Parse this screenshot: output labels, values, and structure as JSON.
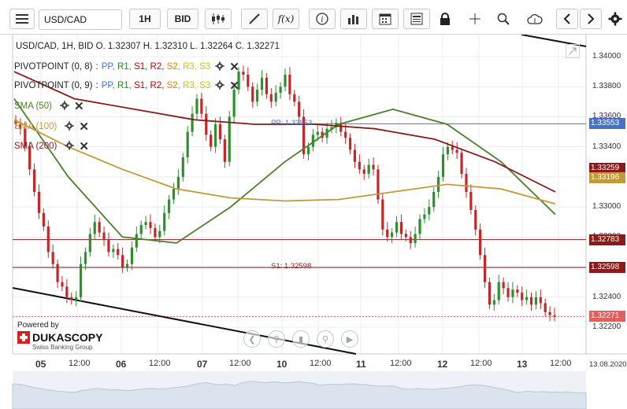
{
  "toolbar": {
    "instrument": "USD/CAD",
    "timeframe": "1H",
    "side": "BID",
    "icons": [
      "menu-icon",
      "candles-icon",
      "draw-pen-icon",
      "fx-icon",
      "info-icon",
      "bar-volume-icon",
      "calendar-icon",
      "news-icon",
      "lock-icon",
      "crosshair-icon",
      "zoom-icon",
      "cloud-upload-icon",
      "arrow-left-icon",
      "arrow-right-icon",
      "settings-gear-icon"
    ],
    "fx_label": "f(x)"
  },
  "header": {
    "ohlc": "USD/CAD, 1H, BID   O. 1.32307 H. 1.32310 L. 1.32264 C. 1.32271"
  },
  "legend": {
    "pivot1": {
      "label": "PIVOTPOINT (0, 8)",
      "sep": ":",
      "items": [
        "PP,",
        "R1,",
        "S1,",
        "R2,",
        "S2,",
        "R3,",
        "S3"
      ]
    },
    "pivot2": {
      "label": "PIVOTPOINT (0, 9)",
      "sep": ":",
      "items": [
        "PP,",
        "R1,",
        "S1,",
        "R2,",
        "S2,",
        "R3,",
        "S3"
      ]
    },
    "sma50": {
      "label": "SMA (50)"
    },
    "sma100": {
      "label": "SMA (100)"
    },
    "sma200": {
      "label": "SMA (200)"
    }
  },
  "annotations": {
    "pp_line": "PP: 1.33553",
    "s1_line": "S1: 1.32598"
  },
  "branding": {
    "powered_by": "Powered by",
    "name": "DUKASCOPY",
    "sub": "Swiss Banking Group"
  },
  "colors": {
    "pp_blue": "#4472c4",
    "r1_green": "#2a8a2a",
    "s1_red": "#c00000",
    "r2_red": "#c00000",
    "s2_orange": "#e08000",
    "r3_yellow": "#d8c000",
    "s3_yellow": "#d8c000",
    "sma50": "#4a7f2a",
    "sma100": "#c39a3a",
    "sma200": "#8b1a1a",
    "bull": "#2f8f2f",
    "bear": "#c0282a",
    "resistance": "#8b1a1a",
    "current": "#e06060"
  },
  "chart_data": {
    "type": "candlestick",
    "instrument": "USD/CAD",
    "timeframe": "1H",
    "ylim": [
      1.3218,
      1.341
    ],
    "y_ticks": [
      "1.34000",
      "1.33800",
      "1.33600",
      "1.33400",
      "1.33200",
      "1.33000",
      "1.32800",
      "1.32600",
      "1.32400",
      "1.32200"
    ],
    "x_labels": [
      "05",
      "12:00",
      "06",
      "12:00",
      "07",
      "12:00",
      "10",
      "12:00",
      "11",
      "12:00",
      "12",
      "12:00",
      "13",
      "12:00",
      "13.08.2020"
    ],
    "x_label_major": [
      true,
      false,
      true,
      false,
      true,
      false,
      true,
      false,
      true,
      false,
      true,
      false,
      true,
      false,
      false
    ],
    "price_tags": [
      {
        "value": "1.33553",
        "color": "#4472c4"
      },
      {
        "value": "1.33259",
        "color": "#8b1a1a"
      },
      {
        "value": "1.33196",
        "color": "#c39a3a"
      },
      {
        "value": "1.32783",
        "color": "#8b1a1a"
      },
      {
        "value": "1.32598",
        "color": "#8b1a1a"
      },
      {
        "value": "1.32271",
        "color": "#e06060"
      }
    ],
    "levels": {
      "pp": 1.33553,
      "s1": 1.32598,
      "res": 1.32783,
      "current": 1.32271
    },
    "candles_close": [
      1.3355,
      1.3352,
      1.334,
      1.3325,
      1.331,
      1.3296,
      1.3287,
      1.327,
      1.3262,
      1.325,
      1.3247,
      1.324,
      1.3238,
      1.324,
      1.3262,
      1.327,
      1.3282,
      1.329,
      1.3283,
      1.3278,
      1.327,
      1.3272,
      1.3268,
      1.326,
      1.3262,
      1.3273,
      1.3282,
      1.3288,
      1.329,
      1.3286,
      1.328,
      1.3284,
      1.3296,
      1.3305,
      1.3312,
      1.332,
      1.3333,
      1.335,
      1.3362,
      1.3372,
      1.3362,
      1.3348,
      1.334,
      1.3355,
      1.3345,
      1.333,
      1.336,
      1.3378,
      1.339,
      1.3388,
      1.338,
      1.337,
      1.3378,
      1.3386,
      1.3375,
      1.337,
      1.3376,
      1.338,
      1.3388,
      1.3375,
      1.337,
      1.336,
      1.3335,
      1.334,
      1.3348,
      1.335,
      1.3346,
      1.3352,
      1.3353,
      1.3356,
      1.335,
      1.3346,
      1.3338,
      1.333,
      1.3325,
      1.3322,
      1.3328,
      1.3325,
      1.3305,
      1.3285,
      1.328,
      1.3283,
      1.329,
      1.3282,
      1.328,
      1.3276,
      1.3282,
      1.3292,
      1.3295,
      1.33,
      1.331,
      1.332,
      1.3335,
      1.334,
      1.3338,
      1.3336,
      1.3322,
      1.331,
      1.3298,
      1.3285,
      1.3268,
      1.325,
      1.3235,
      1.3238,
      1.325,
      1.3246,
      1.324,
      1.3245,
      1.3243,
      1.3238,
      1.324,
      1.3235,
      1.324,
      1.3236,
      1.323,
      1.3228,
      1.3227
    ],
    "sma50": [
      1.3372,
      1.332,
      1.328,
      1.3276,
      1.33,
      1.333,
      1.3355,
      1.3365,
      1.3355,
      1.333,
      1.3295
    ],
    "sma100": [
      1.3358,
      1.334,
      1.3325,
      1.3312,
      1.3306,
      1.3304,
      1.3305,
      1.331,
      1.3315,
      1.3312,
      1.3302
    ],
    "sma200": [
      1.339,
      1.3372,
      1.3365,
      1.3358,
      1.3355,
      1.3355,
      1.3352,
      1.3345,
      1.333,
      1.331
    ]
  }
}
